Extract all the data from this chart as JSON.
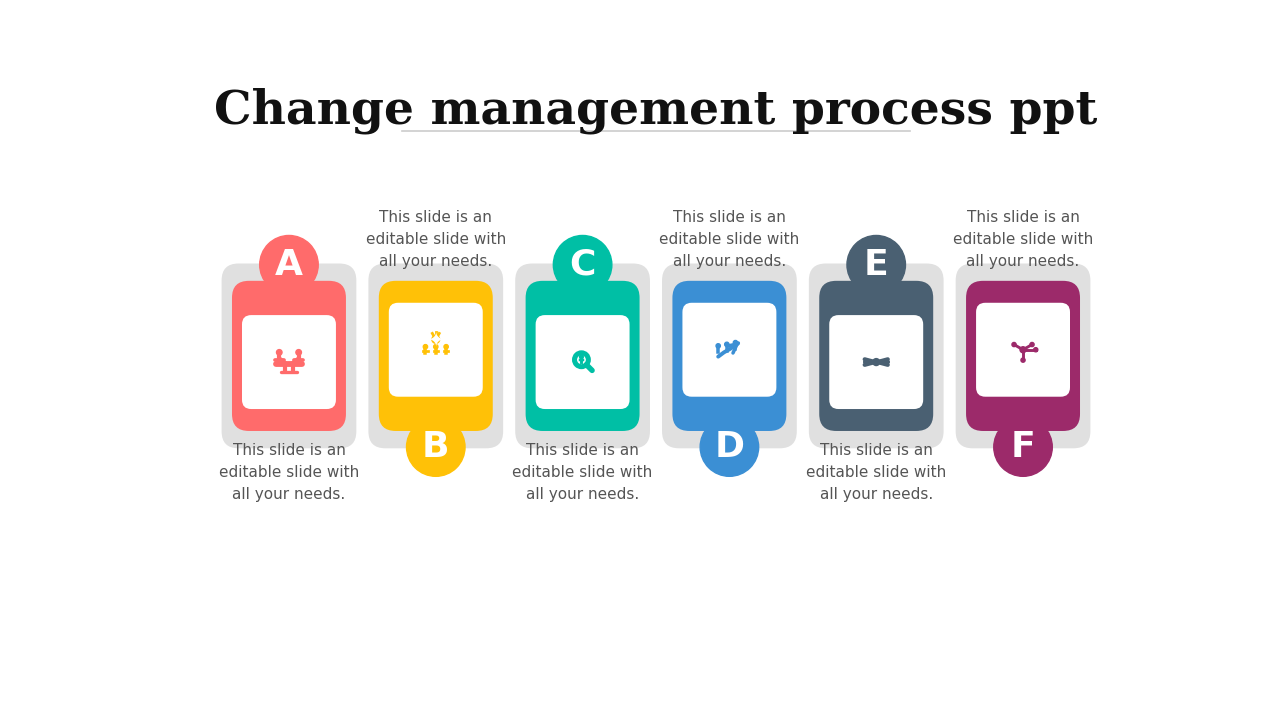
{
  "title": "Change management process ppt",
  "title_fontsize": 34,
  "background_color": "#ffffff",
  "steps": [
    {
      "label": "A",
      "color": "#FF6B6B",
      "text_top": "",
      "text_bottom": "This slide is an\neditable slide with\nall your needs.",
      "position": "top"
    },
    {
      "label": "B",
      "color": "#FFC107",
      "text_top": "This slide is an\neditable slide with\nall your needs.",
      "text_bottom": "",
      "position": "bottom"
    },
    {
      "label": "C",
      "color": "#00BFA5",
      "text_top": "",
      "text_bottom": "This slide is an\neditable slide with\nall your needs.",
      "position": "top"
    },
    {
      "label": "D",
      "color": "#3B8FD4",
      "text_top": "This slide is an\neditable slide with\nall your needs.",
      "text_bottom": "",
      "position": "bottom"
    },
    {
      "label": "E",
      "color": "#4A6072",
      "text_top": "",
      "text_bottom": "This slide is an\neditable slide with\nall your needs.",
      "position": "top"
    },
    {
      "label": "F",
      "color": "#9C2A6A",
      "text_top": "This slide is an\neditable slide with\nall your needs.",
      "text_bottom": "",
      "position": "bottom"
    }
  ],
  "subtitle_line_color": "#cccccc",
  "gray_bg": "#e0e0e0",
  "text_color": "#555555",
  "text_fontsize": 11,
  "label_fontsize": 26
}
